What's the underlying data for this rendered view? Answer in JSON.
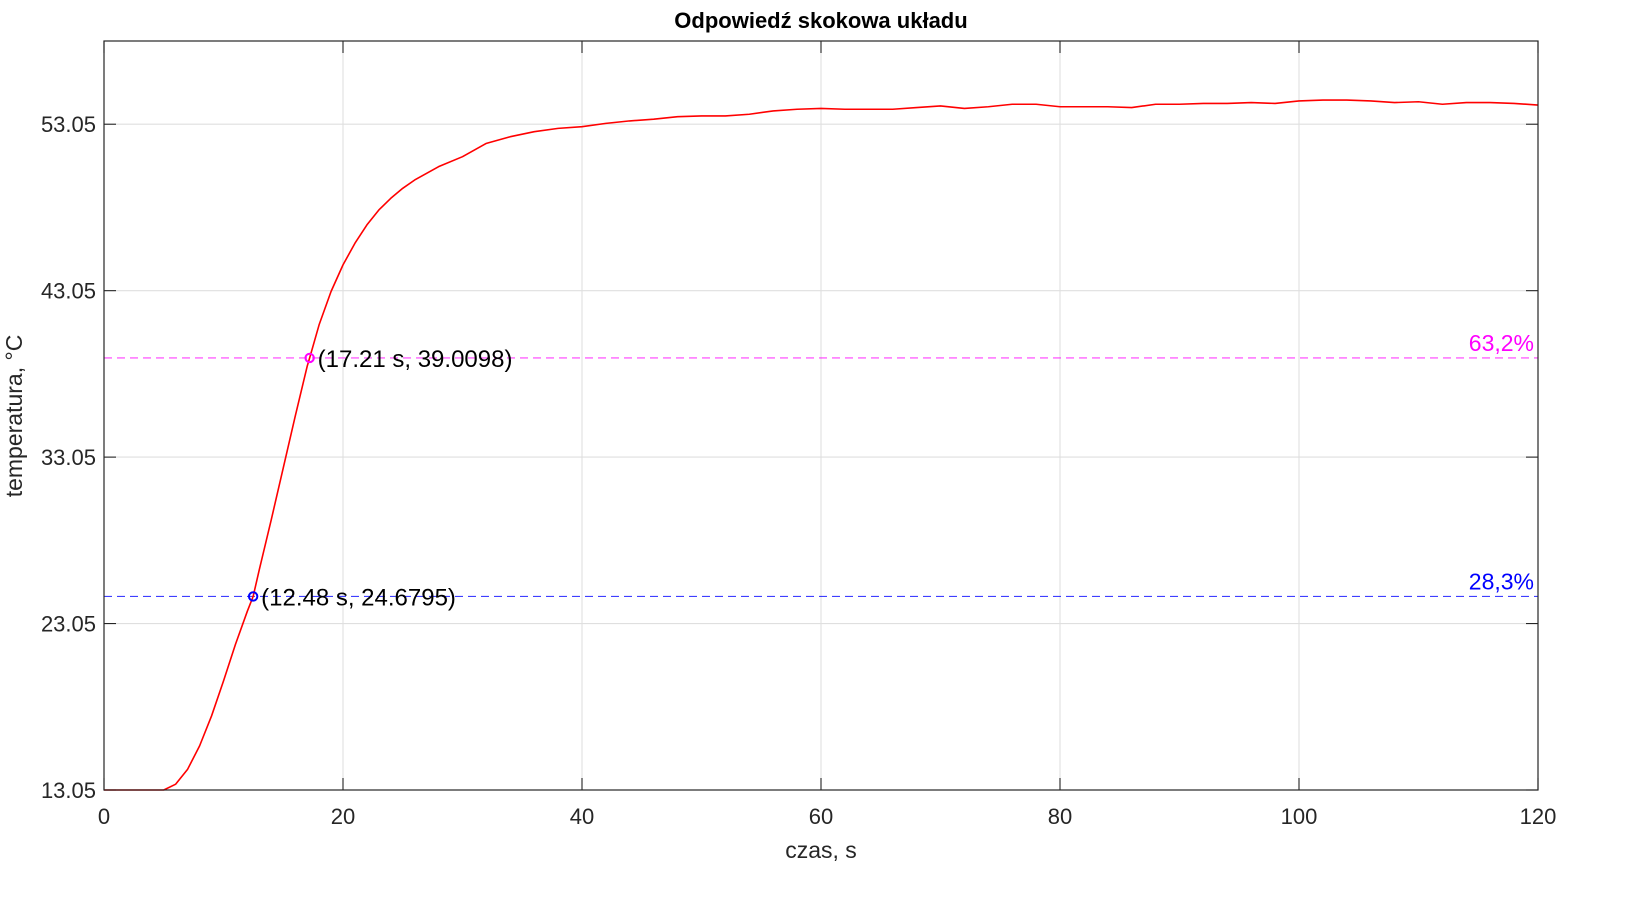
{
  "chart_data": {
    "type": "line",
    "title": "Odpowiedź skokowa układu",
    "xlabel": "czas, s",
    "ylabel": "temperatura, °C",
    "xlim": [
      0,
      120
    ],
    "ylim": [
      13.05,
      58.05
    ],
    "xticks": [
      0,
      20,
      40,
      60,
      80,
      100,
      120
    ],
    "xtick_labels": [
      "0",
      "20",
      "40",
      "60",
      "80",
      "100",
      "120"
    ],
    "yticks": [
      13.05,
      23.05,
      33.05,
      43.05,
      53.05
    ],
    "ytick_labels": [
      "13.05",
      "23.05",
      "33.05",
      "43.05",
      "53.05"
    ],
    "grid": true,
    "series": [
      {
        "color": "#ff0000",
        "x": [
          0,
          5,
          6,
          7,
          8,
          9,
          10,
          11,
          12,
          12.48,
          13,
          14,
          15,
          16,
          17,
          17.21,
          18,
          19,
          20,
          21,
          22,
          23,
          24,
          25,
          26,
          27,
          28,
          30,
          32,
          34,
          36,
          38,
          40,
          42,
          44,
          46,
          48,
          50,
          52,
          54,
          56,
          58,
          60,
          62,
          64,
          66,
          68,
          70,
          72,
          74,
          76,
          78,
          80,
          82,
          84,
          86,
          88,
          90,
          92,
          94,
          96,
          98,
          100,
          102,
          104,
          106,
          108,
          110,
          112,
          114,
          116,
          118,
          120
        ],
        "y": [
          13.05,
          13.05,
          13.4,
          14.3,
          15.7,
          17.5,
          19.6,
          21.8,
          23.8,
          24.68,
          26.3,
          29.3,
          32.4,
          35.5,
          38.5,
          39.01,
          41.0,
          43.0,
          44.6,
          45.9,
          47.0,
          47.9,
          48.6,
          49.2,
          49.7,
          50.1,
          50.5,
          51.1,
          51.9,
          52.3,
          52.6,
          52.8,
          52.9,
          53.1,
          53.25,
          53.35,
          53.5,
          53.55,
          53.55,
          53.65,
          53.85,
          53.95,
          54.0,
          53.95,
          53.95,
          53.95,
          54.05,
          54.15,
          54.0,
          54.1,
          54.25,
          54.25,
          54.1,
          54.1,
          54.1,
          54.05,
          54.25,
          54.25,
          54.3,
          54.3,
          54.35,
          54.3,
          54.45,
          54.5,
          54.5,
          54.45,
          54.35,
          54.4,
          54.25,
          54.35,
          54.35,
          54.3,
          54.2
        ]
      }
    ],
    "reference_lines": [
      {
        "y": 39.0098,
        "color": "#ff00ff",
        "label": "63,2%"
      },
      {
        "y": 24.6795,
        "color": "#0000ff",
        "label": "28,3%"
      }
    ],
    "markers": [
      {
        "x": 17.21,
        "y": 39.0098,
        "color": "#ff00ff",
        "label": "(17.21 s, 39.0098)"
      },
      {
        "x": 12.48,
        "y": 24.6795,
        "color": "#0000ff",
        "label": "(12.48 s, 24.6795)"
      }
    ]
  }
}
